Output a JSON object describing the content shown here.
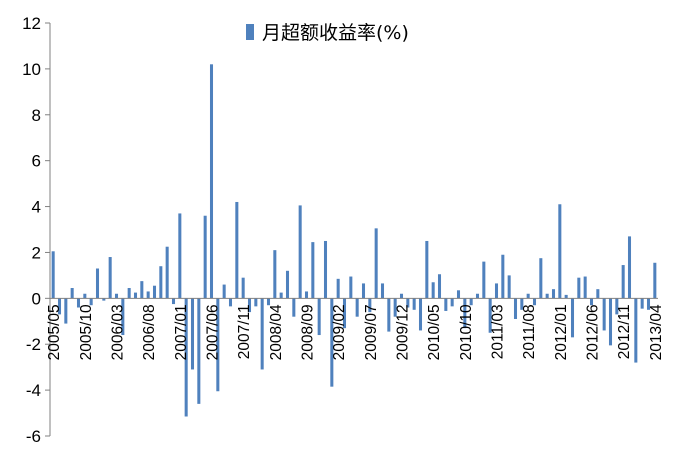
{
  "chart_data": {
    "type": "bar",
    "legend": {
      "label": "月超额收益率(%)",
      "position": "top-center"
    },
    "color": "#4f81bd",
    "ylim": [
      -6,
      12
    ],
    "yticks": [
      -6,
      -4,
      -2,
      0,
      2,
      4,
      6,
      8,
      10,
      12
    ],
    "grid": false,
    "xticks": [
      "2005/05",
      "2005/10",
      "2006/03",
      "2006/08",
      "2007/01",
      "2007/06",
      "2007/11",
      "2008/04",
      "2008/09",
      "2009/02",
      "2009/07",
      "2009/12",
      "2010/05",
      "2010/10",
      "2011/03",
      "2011/08",
      "2012/01",
      "2012/06",
      "2012/11",
      "2013/04"
    ],
    "start_month": "2005/05",
    "values": [
      2.05,
      -0.7,
      -1.1,
      0.45,
      -0.4,
      0.2,
      -0.3,
      1.3,
      -0.1,
      1.8,
      0.2,
      -1.6,
      0.45,
      0.25,
      0.75,
      0.3,
      0.55,
      1.4,
      2.25,
      -0.25,
      3.7,
      -5.15,
      -3.1,
      -4.6,
      3.6,
      10.2,
      -4.05,
      0.6,
      -0.35,
      4.2,
      0.9,
      -0.6,
      -0.35,
      -3.1,
      -0.3,
      2.1,
      0.25,
      1.2,
      -0.8,
      4.05,
      0.3,
      2.45,
      -1.6,
      2.5,
      -3.85,
      0.85,
      -1.3,
      0.95,
      -0.8,
      0.65,
      -0.6,
      3.05,
      0.65,
      -1.45,
      -0.8,
      0.2,
      -0.4,
      -0.5,
      -1.4,
      2.5,
      0.7,
      1.05,
      -0.55,
      -0.35,
      0.35,
      -1.3,
      -0.3,
      0.2,
      1.6,
      -1.5,
      0.65,
      1.9,
      1.0,
      -0.9,
      -0.5,
      0.2,
      -0.3,
      1.75,
      0.2,
      0.4,
      4.1,
      0.15,
      -1.7,
      0.9,
      0.95,
      -0.3,
      0.4,
      -1.4,
      -2.05,
      -0.7,
      1.45,
      2.7,
      -2.8,
      -0.45,
      -0.5,
      1.55
    ]
  }
}
